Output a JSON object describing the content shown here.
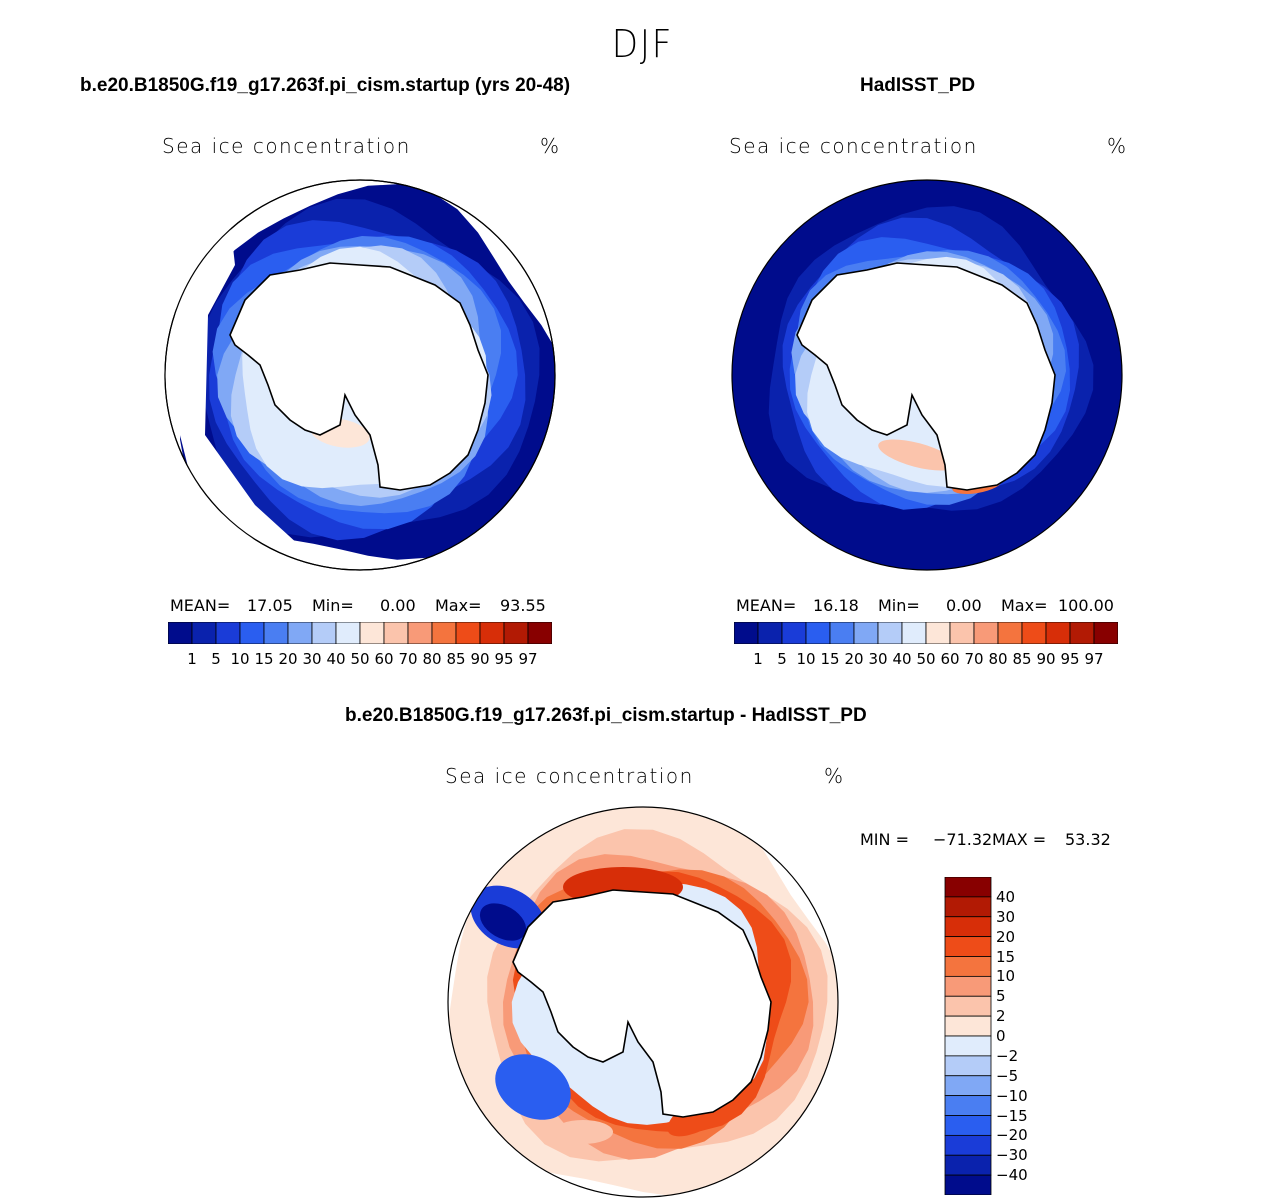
{
  "figure": {
    "title": "DJF",
    "panel1_title": "b.e20.B1850G.f19_g17.263f.pi_cism.startup (yrs 20-48)",
    "panel2_title": "HadISST_PD",
    "panel3_title": "b.e20.B1850G.f19_g17.263f.pi_cism.startup - HadISST_PD",
    "variable_label": "Sea ice concentration",
    "units_label": "%"
  },
  "colors": {
    "seq_palette": [
      "#000c8c",
      "#0a22ad",
      "#1a3cd8",
      "#2a5ef0",
      "#4a7ef2",
      "#80a8f5",
      "#b4ccf8",
      "#e0ecfc",
      "#fde6d8",
      "#fbc4ac",
      "#f89a78",
      "#f4743e",
      "#ee4c18",
      "#d72e08",
      "#b21a04",
      "#880000"
    ],
    "diff_palette": [
      "#880000",
      "#b21a04",
      "#d72e08",
      "#ee4c18",
      "#f4743e",
      "#f89a78",
      "#fbc4ac",
      "#fde6d8",
      "#e0ecfc",
      "#b4ccf8",
      "#80a8f5",
      "#4a7ef2",
      "#2a5ef0",
      "#1a3cd8",
      "#0a22ad",
      "#000c8c"
    ],
    "land": "#ffffff",
    "coast": "#000000"
  },
  "chart_data": [
    {
      "type": "heatmap",
      "projection": "south-polar-stereographic",
      "title": "b.e20.B1850G.f19_g17.263f.pi_cism.startup (yrs 20-48)",
      "variable": "Sea ice concentration",
      "units": "%",
      "stats": {
        "mean_label": "MEAN=",
        "mean": "17.05",
        "min_label": "Min=",
        "min": "0.00",
        "max_label": "Max=",
        "max": "93.55"
      },
      "colorbar": {
        "levels": [
          "1",
          "5",
          "10",
          "15",
          "20",
          "30",
          "40",
          "50",
          "60",
          "70",
          "80",
          "85",
          "90",
          "95",
          "97"
        ]
      },
      "rings": [
        {
          "level": 0,
          "value_pct": 1
        },
        {
          "level": 1,
          "value_pct": 5
        },
        {
          "level": 2,
          "value_pct": 10
        },
        {
          "level": 3,
          "value_pct": 15
        },
        {
          "level": 4,
          "value_pct": 20
        },
        {
          "level": 5,
          "value_pct": 30
        },
        {
          "level": 6,
          "value_pct": 40
        },
        {
          "level": 7,
          "value_pct": 50
        }
      ]
    },
    {
      "type": "heatmap",
      "projection": "south-polar-stereographic",
      "title": "HadISST_PD",
      "variable": "Sea ice concentration",
      "units": "%",
      "stats": {
        "mean_label": "MEAN=",
        "mean": "16.18",
        "min_label": "Min=",
        "min": "0.00",
        "max_label": "Max=",
        "max": "100.00"
      },
      "colorbar": {
        "levels": [
          "1",
          "5",
          "10",
          "15",
          "20",
          "30",
          "40",
          "50",
          "60",
          "70",
          "80",
          "85",
          "90",
          "95",
          "97"
        ]
      }
    },
    {
      "type": "heatmap",
      "projection": "south-polar-stereographic",
      "title": "b.e20.B1850G.f19_g17.263f.pi_cism.startup - HadISST_PD",
      "variable": "Sea ice concentration",
      "units": "%",
      "stats": {
        "min_label": "MIN =",
        "min": "−71.32",
        "max_label": "MAX =",
        "max": "53.32"
      },
      "colorbar": {
        "levels": [
          "40",
          "30",
          "20",
          "15",
          "10",
          "5",
          "2",
          "0",
          "−2",
          "−5",
          "−10",
          "−15",
          "−20",
          "−30",
          "−40"
        ]
      }
    }
  ]
}
